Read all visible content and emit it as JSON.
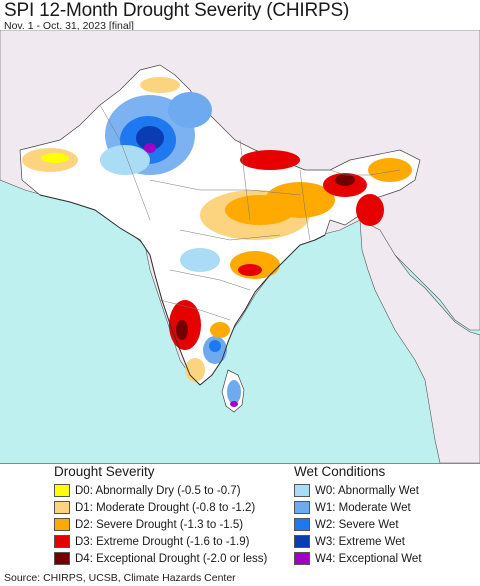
{
  "header": {
    "title": "SPI 12-Month Drought Severity (CHIRPS)",
    "subtitle": "Nov. 1 - Oct. 31, 2023 [final]"
  },
  "legend": {
    "drought": {
      "heading": "Drought Severity",
      "items": [
        {
          "code": "D0",
          "label": "D0: Abnormally Dry (-0.5 to -0.7)",
          "color": "#ffff00"
        },
        {
          "code": "D1",
          "label": "D1: Moderate Drought (-0.8 to -1.2)",
          "color": "#fcd37f"
        },
        {
          "code": "D2",
          "label": "D2: Severe Drought (-1.3 to -1.5)",
          "color": "#ffaa00"
        },
        {
          "code": "D3",
          "label": "D3: Extreme Drought (-1.6 to -1.9)",
          "color": "#e60000"
        },
        {
          "code": "D4",
          "label": "D4: Exceptional Drought (-2.0 or less)",
          "color": "#730000"
        }
      ]
    },
    "wet": {
      "heading": "Wet Conditions",
      "items": [
        {
          "code": "W0",
          "label": "W0: Abnormally Wet",
          "color": "#aadcf5"
        },
        {
          "code": "W1",
          "label": "W1: Moderate Wet",
          "color": "#6eaaf0"
        },
        {
          "code": "W2",
          "label": "W2: Severe Wet",
          "color": "#1e78f0"
        },
        {
          "code": "W3",
          "label": "W3: Extreme Wet",
          "color": "#0a3cb4"
        },
        {
          "code": "W4",
          "label": "W4: Exceptional Wet",
          "color": "#a000c8"
        }
      ]
    }
  },
  "map": {
    "ocean_color": "#bff0f0",
    "outside_land_color": "#f0eaf0",
    "land_base_color": "#ffffff"
  },
  "footer": {
    "source": "Source: CHIRPS, UCSB, Climate Hazards Center"
  }
}
